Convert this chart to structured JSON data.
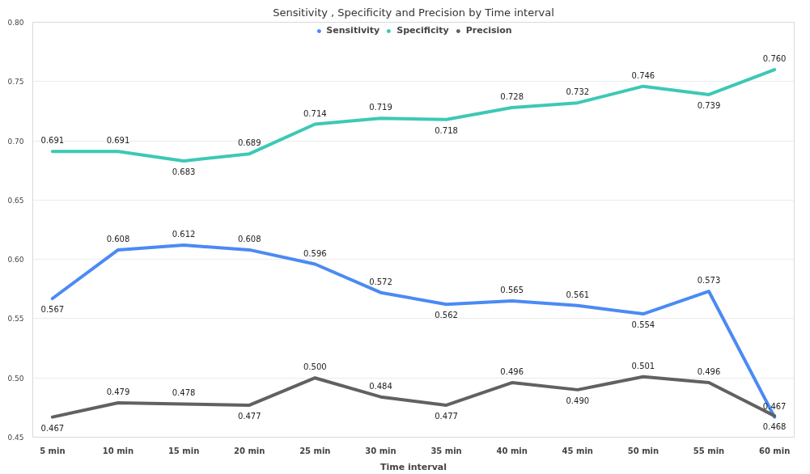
{
  "chart_data": {
    "type": "line",
    "title": "Sensitivity , Specificity and Precision by Time interval",
    "xlabel": "Time interval",
    "categories": [
      "5 min",
      "10 min",
      "15 min",
      "20 min",
      "25 min",
      "30 min",
      "35 min",
      "40 min",
      "45 min",
      "50 min",
      "55 min",
      "60 min"
    ],
    "series": [
      {
        "name": "Sensitivity",
        "color": "#4a8af4",
        "values": [
          0.567,
          0.608,
          0.612,
          0.608,
          0.596,
          0.572,
          0.562,
          0.565,
          0.561,
          0.554,
          0.573,
          0.467
        ],
        "value_labels": [
          "0.567",
          "0.608",
          "0.612",
          "0.608",
          "0.596",
          "0.572",
          "0.562",
          "0.565",
          "0.561",
          "0.554",
          "0.573",
          "0.467"
        ]
      },
      {
        "name": "Specificity",
        "color": "#3dc8b6",
        "values": [
          0.691,
          0.691,
          0.683,
          0.689,
          0.714,
          0.719,
          0.718,
          0.728,
          0.732,
          0.746,
          0.739,
          0.76
        ],
        "value_labels": [
          "0.691",
          "0.691",
          "0.683",
          "0.689",
          "0.714",
          "0.719",
          "0.718",
          "0.728",
          "0.732",
          "0.746",
          "0.739",
          "0.760"
        ]
      },
      {
        "name": "Precision",
        "color": "#616161",
        "values": [
          0.467,
          0.479,
          0.478,
          0.477,
          0.5,
          0.484,
          0.477,
          0.496,
          0.49,
          0.501,
          0.496,
          0.468
        ],
        "value_labels": [
          "0.467",
          "0.479",
          "0.478",
          "0.477",
          "0.500",
          "0.484",
          "0.477",
          "0.496",
          "0.490",
          "0.501",
          "0.496",
          "0.468"
        ]
      }
    ],
    "ylim": [
      0.45,
      0.8
    ],
    "yticks": [
      "0.45",
      "0.50",
      "0.55",
      "0.60",
      "0.65",
      "0.70",
      "0.75",
      "0.80"
    ],
    "grid": "y",
    "legend": "top",
    "marker": "none",
    "line_style": "solid"
  }
}
